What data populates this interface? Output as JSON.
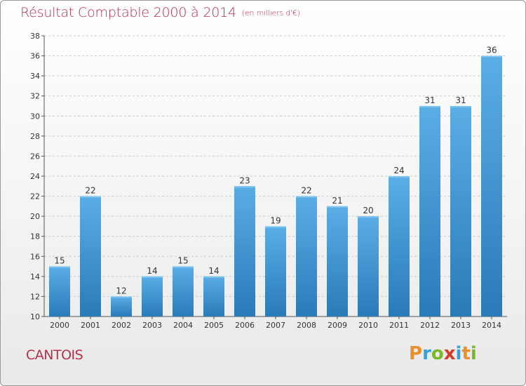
{
  "header": {
    "title": "Résultat Comptable 2000 à 2014",
    "subtitle": "(en milliers d'€)"
  },
  "footer": {
    "commune": "CANTOIS",
    "logo_text": "Proxiti",
    "logo_letters": [
      {
        "char": "P",
        "color": "#e8912a"
      },
      {
        "char": "r",
        "color": "#3aa0d8"
      },
      {
        "char": "o",
        "color": "#78b82a"
      },
      {
        "char": "x",
        "color": "#d63a2a"
      },
      {
        "char": "i",
        "color": "#3aa0d8"
      },
      {
        "char": "t",
        "color": "#e8912a"
      },
      {
        "char": "i",
        "color": "#78b82a"
      }
    ]
  },
  "chart_data": {
    "type": "bar",
    "title": "Résultat Comptable 2000 à 2014",
    "subtitle": "(en milliers d'€)",
    "xlabel": "",
    "ylabel": "",
    "categories": [
      "2000",
      "2001",
      "2002",
      "2003",
      "2004",
      "2005",
      "2006",
      "2007",
      "2008",
      "2009",
      "2010",
      "2011",
      "2012",
      "2013",
      "2014"
    ],
    "values": [
      15,
      22,
      12,
      14,
      15,
      14,
      23,
      19,
      22,
      21,
      20,
      24,
      31,
      31,
      36
    ],
    "ylim": [
      10,
      38
    ],
    "yticks": [
      10,
      12,
      14,
      16,
      18,
      20,
      22,
      24,
      26,
      28,
      30,
      32,
      34,
      36,
      38
    ],
    "grid": true,
    "legend": "none",
    "colors": {
      "bar_top": "#5aaee6",
      "bar_bottom": "#2a7ab8",
      "title": "#b5304d",
      "grid": "#c8c8c8",
      "axis": "#555555"
    }
  }
}
